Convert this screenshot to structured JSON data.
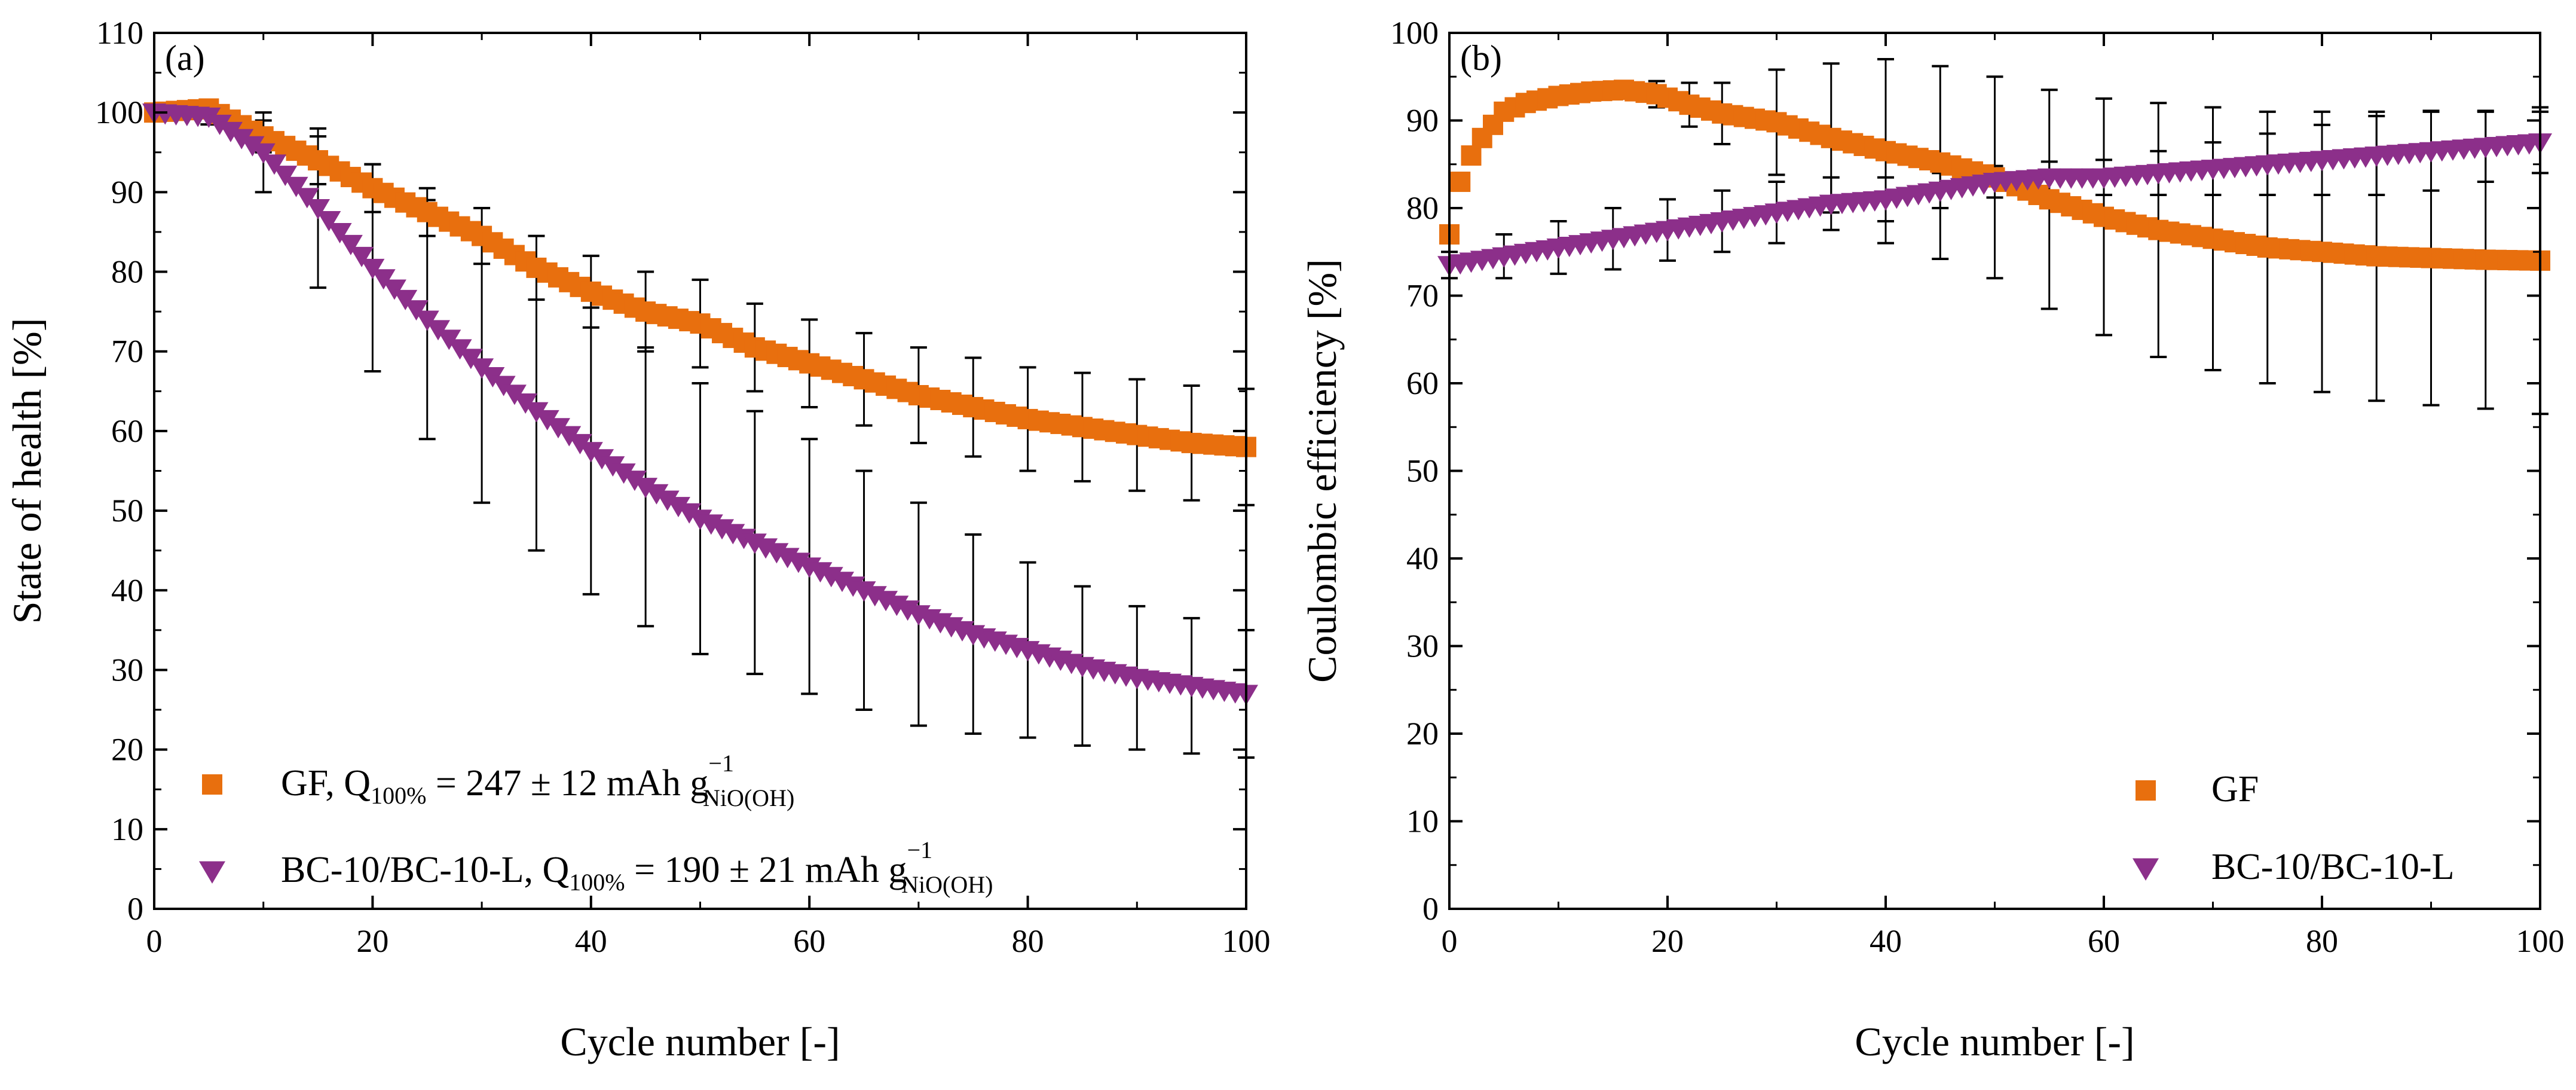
{
  "colors": {
    "gf": "#E86F0E",
    "bc": "#8C2F8A",
    "axis": "#000000",
    "errorbar": "#000000"
  },
  "chart_data": [
    {
      "type": "scatter",
      "panel_label": "(a)",
      "xlabel": "Cycle number [-]",
      "ylabel": "State of health [%]",
      "xlim": [
        0,
        100
      ],
      "ylim": [
        0,
        110
      ],
      "xticks": [
        0,
        20,
        40,
        60,
        80,
        100
      ],
      "yticks": [
        0,
        10,
        20,
        30,
        40,
        50,
        60,
        70,
        80,
        90,
        100,
        110
      ],
      "grid": false,
      "legend_position": "bottom-left",
      "series": [
        {
          "name": "GF",
          "marker": "square",
          "color": "#E86F0E",
          "legend": {
            "prefix": "GF, Q",
            "q_sub": "100%",
            "middle": " = 247 ± 12 mAh g",
            "g_sup": "−1",
            "g_sub": "NiO(OH)"
          },
          "x": [
            0,
            5,
            10,
            15,
            20,
            25,
            30,
            35,
            40,
            45,
            50,
            55,
            60,
            65,
            70,
            75,
            80,
            85,
            90,
            95,
            100
          ],
          "y": [
            100,
            100.5,
            97,
            94,
            90.5,
            87.5,
            84.5,
            80.5,
            77.5,
            75,
            73.5,
            70.5,
            68.5,
            66.5,
            64.5,
            63,
            61.5,
            60.5,
            59.5,
            58.5,
            58
          ],
          "err": [
            0.5,
            0.7,
            2,
            3,
            3,
            3,
            3.5,
            4,
            4.5,
            5,
            5.5,
            5.5,
            5.5,
            5.8,
            6,
            6.2,
            6.5,
            6.8,
            7,
            7.2,
            7.3
          ]
        },
        {
          "name": "BC-10/BC-10-L",
          "marker": "triangle-down",
          "color": "#8C2F8A",
          "legend": {
            "prefix": "BC-10/BC-10-L, Q",
            "q_sub": "100%",
            "middle": " = 190 ± 21 mAh g",
            "g_sup": "−1",
            "g_sub": "NiO(OH)"
          },
          "x": [
            0,
            5,
            10,
            15,
            20,
            25,
            30,
            35,
            40,
            45,
            50,
            55,
            60,
            65,
            70,
            75,
            80,
            85,
            90,
            95,
            100
          ],
          "y": [
            100,
            99.5,
            95,
            88,
            80.5,
            74,
            68,
            62.5,
            57.5,
            53,
            49,
            46,
            43,
            40,
            37,
            34.5,
            32.5,
            30.5,
            29,
            28,
            27
          ],
          "err": [
            0.5,
            1,
            5,
            10,
            13,
            15,
            17,
            17.5,
            18,
            17.5,
            17,
            16.5,
            16,
            15,
            14,
            12.5,
            11,
            10,
            9,
            8.5,
            8
          ]
        }
      ]
    },
    {
      "type": "scatter",
      "panel_label": "(b)",
      "xlabel": "Cycle number [-]",
      "ylabel": "Coulombic efficiency [%]",
      "xlim": [
        0,
        100
      ],
      "ylim": [
        0,
        100
      ],
      "xticks": [
        0,
        20,
        40,
        60,
        80,
        100
      ],
      "yticks": [
        0,
        10,
        20,
        30,
        40,
        50,
        60,
        70,
        80,
        90,
        100
      ],
      "grid": false,
      "legend_position": "bottom-right",
      "series": [
        {
          "name": "GF",
          "marker": "square",
          "color": "#E86F0E",
          "legend": {
            "prefix": "GF"
          },
          "x": [
            0,
            1,
            2,
            3,
            5,
            7,
            10,
            13,
            16,
            19,
            22,
            25,
            30,
            35,
            40,
            45,
            50,
            55,
            60,
            65,
            70,
            75,
            80,
            85,
            90,
            95,
            100
          ],
          "y": [
            77,
            83,
            86,
            88,
            91,
            92,
            92.8,
            93.3,
            93.5,
            93,
            91.8,
            90.8,
            89.8,
            88,
            86.5,
            85.2,
            83.5,
            81,
            79,
            77.5,
            76.5,
            75.5,
            75,
            74.5,
            74.3,
            74.1,
            74
          ],
          "err": [
            1,
            1,
            1,
            1,
            1,
            1,
            1,
            1,
            1,
            1.5,
            2.5,
            3.5,
            6,
            8.5,
            10.5,
            11,
            11.5,
            12.5,
            13.5,
            14.5,
            15,
            15.5,
            16,
            16.5,
            16.8,
            17,
            17.5
          ]
        },
        {
          "name": "BC-10/BC-10-L",
          "marker": "triangle-down",
          "color": "#8C2F8A",
          "legend": {
            "prefix": "BC-10/BC-10-L"
          },
          "x": [
            0,
            5,
            10,
            15,
            20,
            25,
            30,
            35,
            40,
            45,
            50,
            55,
            60,
            65,
            70,
            75,
            80,
            85,
            90,
            95,
            100
          ],
          "y": [
            73.5,
            74.5,
            75.5,
            76.5,
            77.5,
            78.5,
            79.5,
            80.5,
            81,
            82,
            83,
            83.5,
            83.5,
            84,
            84.5,
            85,
            85.5,
            86,
            86.5,
            87,
            87.5
          ],
          "err": [
            1.5,
            2.5,
            3,
            3.5,
            3.5,
            3.5,
            3.5,
            3,
            2.5,
            2,
            1.8,
            1.8,
            2,
            2.5,
            3,
            3.5,
            4,
            4.5,
            4.5,
            4,
            3.5
          ]
        }
      ]
    }
  ]
}
